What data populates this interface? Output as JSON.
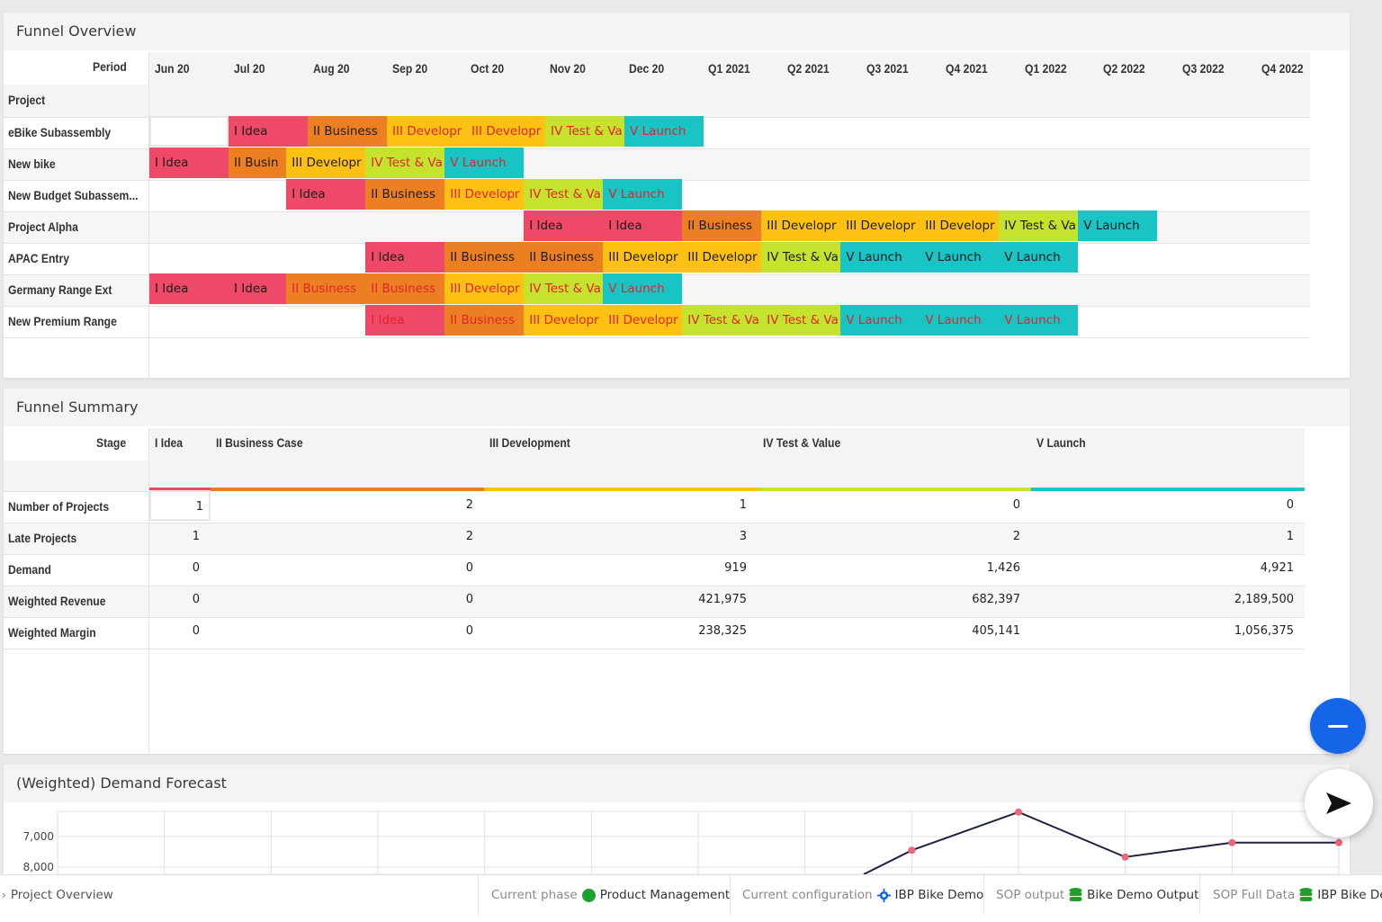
{
  "colors": {
    "idea": "#ee4966",
    "business": "#ec7f22",
    "development": "#fdc113",
    "test": "#c5e22c",
    "launch": "#19c5c4",
    "fab_blue": "#1565e8",
    "status_green": "#1ea02d"
  },
  "funnel_overview": {
    "title": "Funnel Overview",
    "period_label": "Period",
    "project_label": "Project",
    "periods": [
      "Jun 20",
      "Jul 20",
      "Aug 20",
      "Sep 20",
      "Oct 20",
      "Nov 20",
      "Dec 20",
      "Q1 2021",
      "Q2 2021",
      "Q3 2021",
      "Q4 2021",
      "Q1 2022",
      "Q2 2022",
      "Q3 2022",
      "Q4 2022"
    ],
    "projects": [
      {
        "name": "eBike Subassembly",
        "bars": [
          {
            "stage": "empty",
            "text": "",
            "start": 0,
            "span": 1
          },
          {
            "stage": "idea",
            "text": "I Idea",
            "start": 1,
            "span": 1
          },
          {
            "stage": "business",
            "text": "II Business",
            "start": 2,
            "span": 1
          },
          {
            "stage": "development",
            "text": "III Developr",
            "start": 3,
            "span": 1,
            "late": true
          },
          {
            "stage": "development",
            "text": "III Developr",
            "start": 4,
            "span": 1,
            "late": true
          },
          {
            "stage": "test",
            "text": "IV Test & Va",
            "start": 5,
            "span": 1,
            "late": true
          },
          {
            "stage": "launch",
            "text": "V Launch",
            "start": 6,
            "span": 1,
            "late": true
          }
        ]
      },
      {
        "name": "New bike",
        "bars": [
          {
            "stage": "idea",
            "text": "I Idea",
            "start": 0,
            "span": 1
          },
          {
            "stage": "business",
            "text": "II Busin",
            "start": 1,
            "span": 0.73
          },
          {
            "stage": "development",
            "text": "III Developr",
            "start": 1.73,
            "span": 1.0
          },
          {
            "stage": "test",
            "text": "IV Test & Va",
            "start": 2.73,
            "span": 1.0,
            "late": true
          },
          {
            "stage": "launch",
            "text": "V Launch",
            "start": 3.73,
            "span": 1.0,
            "late": true
          }
        ]
      },
      {
        "name": "New Budget Subassem...",
        "bars": [
          {
            "stage": "idea",
            "text": "I Idea",
            "start": 1.73,
            "span": 1.0
          },
          {
            "stage": "business",
            "text": "II Business",
            "start": 2.73,
            "span": 1.0
          },
          {
            "stage": "development",
            "text": "III Developr",
            "start": 3.73,
            "span": 1.0,
            "late": true
          },
          {
            "stage": "test",
            "text": "IV Test & Va",
            "start": 4.73,
            "span": 1.0,
            "late": true
          },
          {
            "stage": "launch",
            "text": "V Launch",
            "start": 5.73,
            "span": 1.0,
            "late": true
          }
        ]
      },
      {
        "name": "Project Alpha",
        "bars": [
          {
            "stage": "idea",
            "text": "I Idea",
            "start": 4.73,
            "span": 1.0
          },
          {
            "stage": "idea",
            "text": "I Idea",
            "start": 5.73,
            "span": 1.0
          },
          {
            "stage": "business",
            "text": "II Business",
            "start": 6.73,
            "span": 1.0
          },
          {
            "stage": "development",
            "text": "III Developr",
            "start": 7.73,
            "span": 1.0
          },
          {
            "stage": "development",
            "text": "III Developr",
            "start": 8.73,
            "span": 1.0
          },
          {
            "stage": "development",
            "text": "III Developr",
            "start": 9.73,
            "span": 1.0
          },
          {
            "stage": "test",
            "text": "IV Test & Va",
            "start": 10.73,
            "span": 1.0
          },
          {
            "stage": "launch",
            "text": "V Launch",
            "start": 11.73,
            "span": 1.0
          }
        ]
      },
      {
        "name": "APAC Entry",
        "bars": [
          {
            "stage": "idea",
            "text": "I Idea",
            "start": 2.73,
            "span": 1.0
          },
          {
            "stage": "business",
            "text": "II Business",
            "start": 3.73,
            "span": 1.0
          },
          {
            "stage": "business",
            "text": "II Business",
            "start": 4.73,
            "span": 1.0
          },
          {
            "stage": "development",
            "text": "III Developr",
            "start": 5.73,
            "span": 1.0
          },
          {
            "stage": "development",
            "text": "III Developr",
            "start": 6.73,
            "span": 1.0
          },
          {
            "stage": "test",
            "text": "IV Test & Va",
            "start": 7.73,
            "span": 1.0
          },
          {
            "stage": "launch",
            "text": "V Launch",
            "start": 8.73,
            "span": 1.0
          },
          {
            "stage": "launch",
            "text": "V Launch",
            "start": 9.73,
            "span": 1.0
          },
          {
            "stage": "launch",
            "text": "V Launch",
            "start": 10.73,
            "span": 1.0
          }
        ]
      },
      {
        "name": "Germany Range Ext",
        "bars": [
          {
            "stage": "idea",
            "text": "I Idea",
            "start": 0,
            "span": 1
          },
          {
            "stage": "idea",
            "text": "I Idea",
            "start": 1,
            "span": 0.73
          },
          {
            "stage": "business",
            "text": "II Business",
            "start": 1.73,
            "span": 1.0,
            "late": true
          },
          {
            "stage": "business",
            "text": "II Business",
            "start": 2.73,
            "span": 1.0,
            "late": true
          },
          {
            "stage": "development",
            "text": "III Developr",
            "start": 3.73,
            "span": 1.0,
            "late": true
          },
          {
            "stage": "test",
            "text": "IV Test & Va",
            "start": 4.73,
            "span": 1.0,
            "late": true
          },
          {
            "stage": "launch",
            "text": "V Launch",
            "start": 5.73,
            "span": 1.0,
            "late": true
          }
        ]
      },
      {
        "name": "New Premium Range",
        "bars": [
          {
            "stage": "idea",
            "text": "I Idea",
            "start": 2.73,
            "span": 1.0,
            "late": true
          },
          {
            "stage": "business",
            "text": "II Business",
            "start": 3.73,
            "span": 1.0,
            "late": true
          },
          {
            "stage": "development",
            "text": "III Developr",
            "start": 4.73,
            "span": 1.0,
            "late": true
          },
          {
            "stage": "development",
            "text": "III Developr",
            "start": 5.73,
            "span": 1.0,
            "late": true
          },
          {
            "stage": "test",
            "text": "IV Test & Va",
            "start": 6.73,
            "span": 1.0,
            "late": true
          },
          {
            "stage": "test",
            "text": "IV Test & Va",
            "start": 7.73,
            "span": 1.0,
            "late": true
          },
          {
            "stage": "launch",
            "text": "V Launch",
            "start": 8.73,
            "span": 1.0,
            "late": true
          },
          {
            "stage": "launch",
            "text": "V Launch",
            "start": 9.73,
            "span": 1.0,
            "late": true
          },
          {
            "stage": "launch",
            "text": "V Launch",
            "start": 10.73,
            "span": 1.0,
            "late": true
          }
        ]
      }
    ]
  },
  "funnel_summary": {
    "title": "Funnel Summary",
    "stage_label": "Stage",
    "stages": [
      "I Idea",
      "II Business Case",
      "III Development",
      "IV Test & Value",
      "V Launch"
    ],
    "rows": [
      {
        "label": "Number of Projects",
        "values": [
          "1",
          "2",
          "1",
          "0",
          "0"
        ]
      },
      {
        "label": "Late Projects",
        "values": [
          "1",
          "2",
          "3",
          "2",
          "1"
        ]
      },
      {
        "label": "Demand",
        "values": [
          "0",
          "0",
          "919",
          "1,426",
          "4,921"
        ]
      },
      {
        "label": "Weighted Revenue",
        "values": [
          "0",
          "0",
          "421,975",
          "682,397",
          "2,189,500"
        ]
      },
      {
        "label": "Weighted Margin",
        "values": [
          "0",
          "0",
          "238,325",
          "405,141",
          "1,056,375"
        ]
      }
    ]
  },
  "demand_forecast": {
    "title": "(Weighted) Demand Forecast",
    "y_ticks": [
      "8,000",
      "7,000"
    ]
  },
  "chart_data": {
    "type": "line",
    "title": "(Weighted) Demand Forecast",
    "ylim": [
      6800,
      8800
    ],
    "y_ticks": [
      7000,
      8000
    ],
    "points_visible": [
      {
        "idx": 8,
        "y": 7550
      },
      {
        "idx": 9,
        "y": 8800
      },
      {
        "idx": 10,
        "y": 7330
      },
      {
        "idx": 11,
        "y": 7800
      },
      {
        "idx": 12,
        "y": 7800
      }
    ],
    "grid": true
  },
  "status_bar": {
    "breadcrumb": "Project Overview",
    "phase_label": "Current phase",
    "phase_value": "Product Management",
    "config_label": "Current configuration",
    "config_value": "IBP Bike Demo",
    "sop_output_label": "SOP output",
    "sop_output_value": "Bike Demo Output",
    "sop_full_label": "SOP Full Data",
    "sop_full_value": "IBP Bike Demo"
  }
}
